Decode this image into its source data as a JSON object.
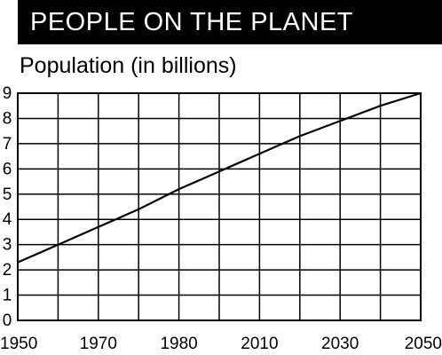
{
  "header": {
    "title": "PEOPLE ON THE PLANET"
  },
  "chart_data": {
    "type": "line",
    "title": "PEOPLE ON THE PLANET",
    "subtitle": "Population (in billions)",
    "x_tick_labels": [
      "1950",
      "1970",
      "1980",
      "2010",
      "2030",
      "2050"
    ],
    "y_ticks": [
      0,
      1,
      2,
      3,
      4,
      5,
      6,
      7,
      8,
      9
    ],
    "ylim": [
      0,
      9
    ],
    "grid": true,
    "x": [
      1950,
      1960,
      1970,
      1980,
      1990,
      2000,
      2010,
      2020,
      2030,
      2040,
      2050
    ],
    "series": [
      {
        "values": [
          2.3,
          3.0,
          3.7,
          4.4,
          5.2,
          5.9,
          6.6,
          7.3,
          7.9,
          8.5,
          9.0
        ]
      }
    ],
    "colors": {
      "line": "#000000",
      "grid": "#000000",
      "title_bg": "#000000",
      "title_text": "#ffffff"
    }
  }
}
